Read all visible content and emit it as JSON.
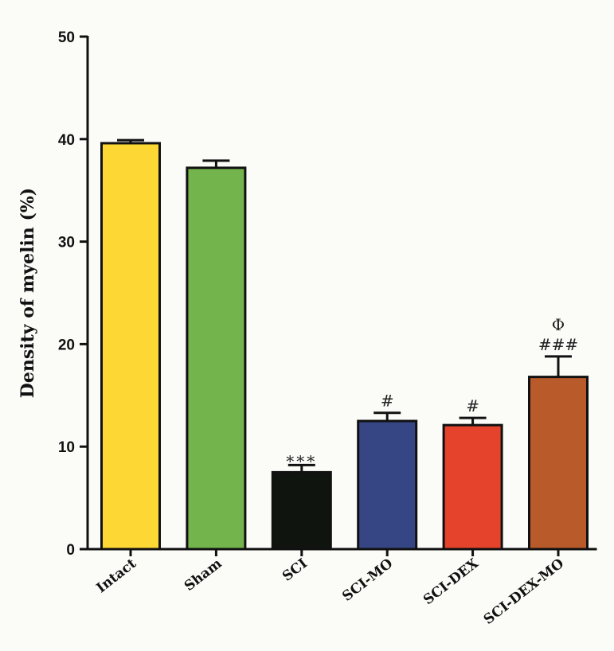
{
  "chart_data": {
    "type": "bar",
    "title": "",
    "xlabel": "",
    "ylabel": "Density of myelin (%)",
    "ylim": [
      0,
      50
    ],
    "yticks": [
      0,
      10,
      20,
      30,
      40,
      50
    ],
    "grid": false,
    "categories": [
      "Intact",
      "Sham",
      "SCI",
      "SCI-MO",
      "SCI-DEX",
      "SCI-DEX-MO"
    ],
    "values": [
      39.6,
      37.2,
      7.5,
      12.5,
      12.1,
      16.8
    ],
    "errors": [
      0.3,
      0.7,
      0.7,
      0.8,
      0.7,
      2.0
    ],
    "annotations": [
      "",
      "",
      "***",
      "#",
      "#",
      "Φ\n###"
    ],
    "colors": [
      "#fdd835",
      "#74b44c",
      "#10140e",
      "#364684",
      "#e5432b",
      "#b95a2b"
    ]
  }
}
